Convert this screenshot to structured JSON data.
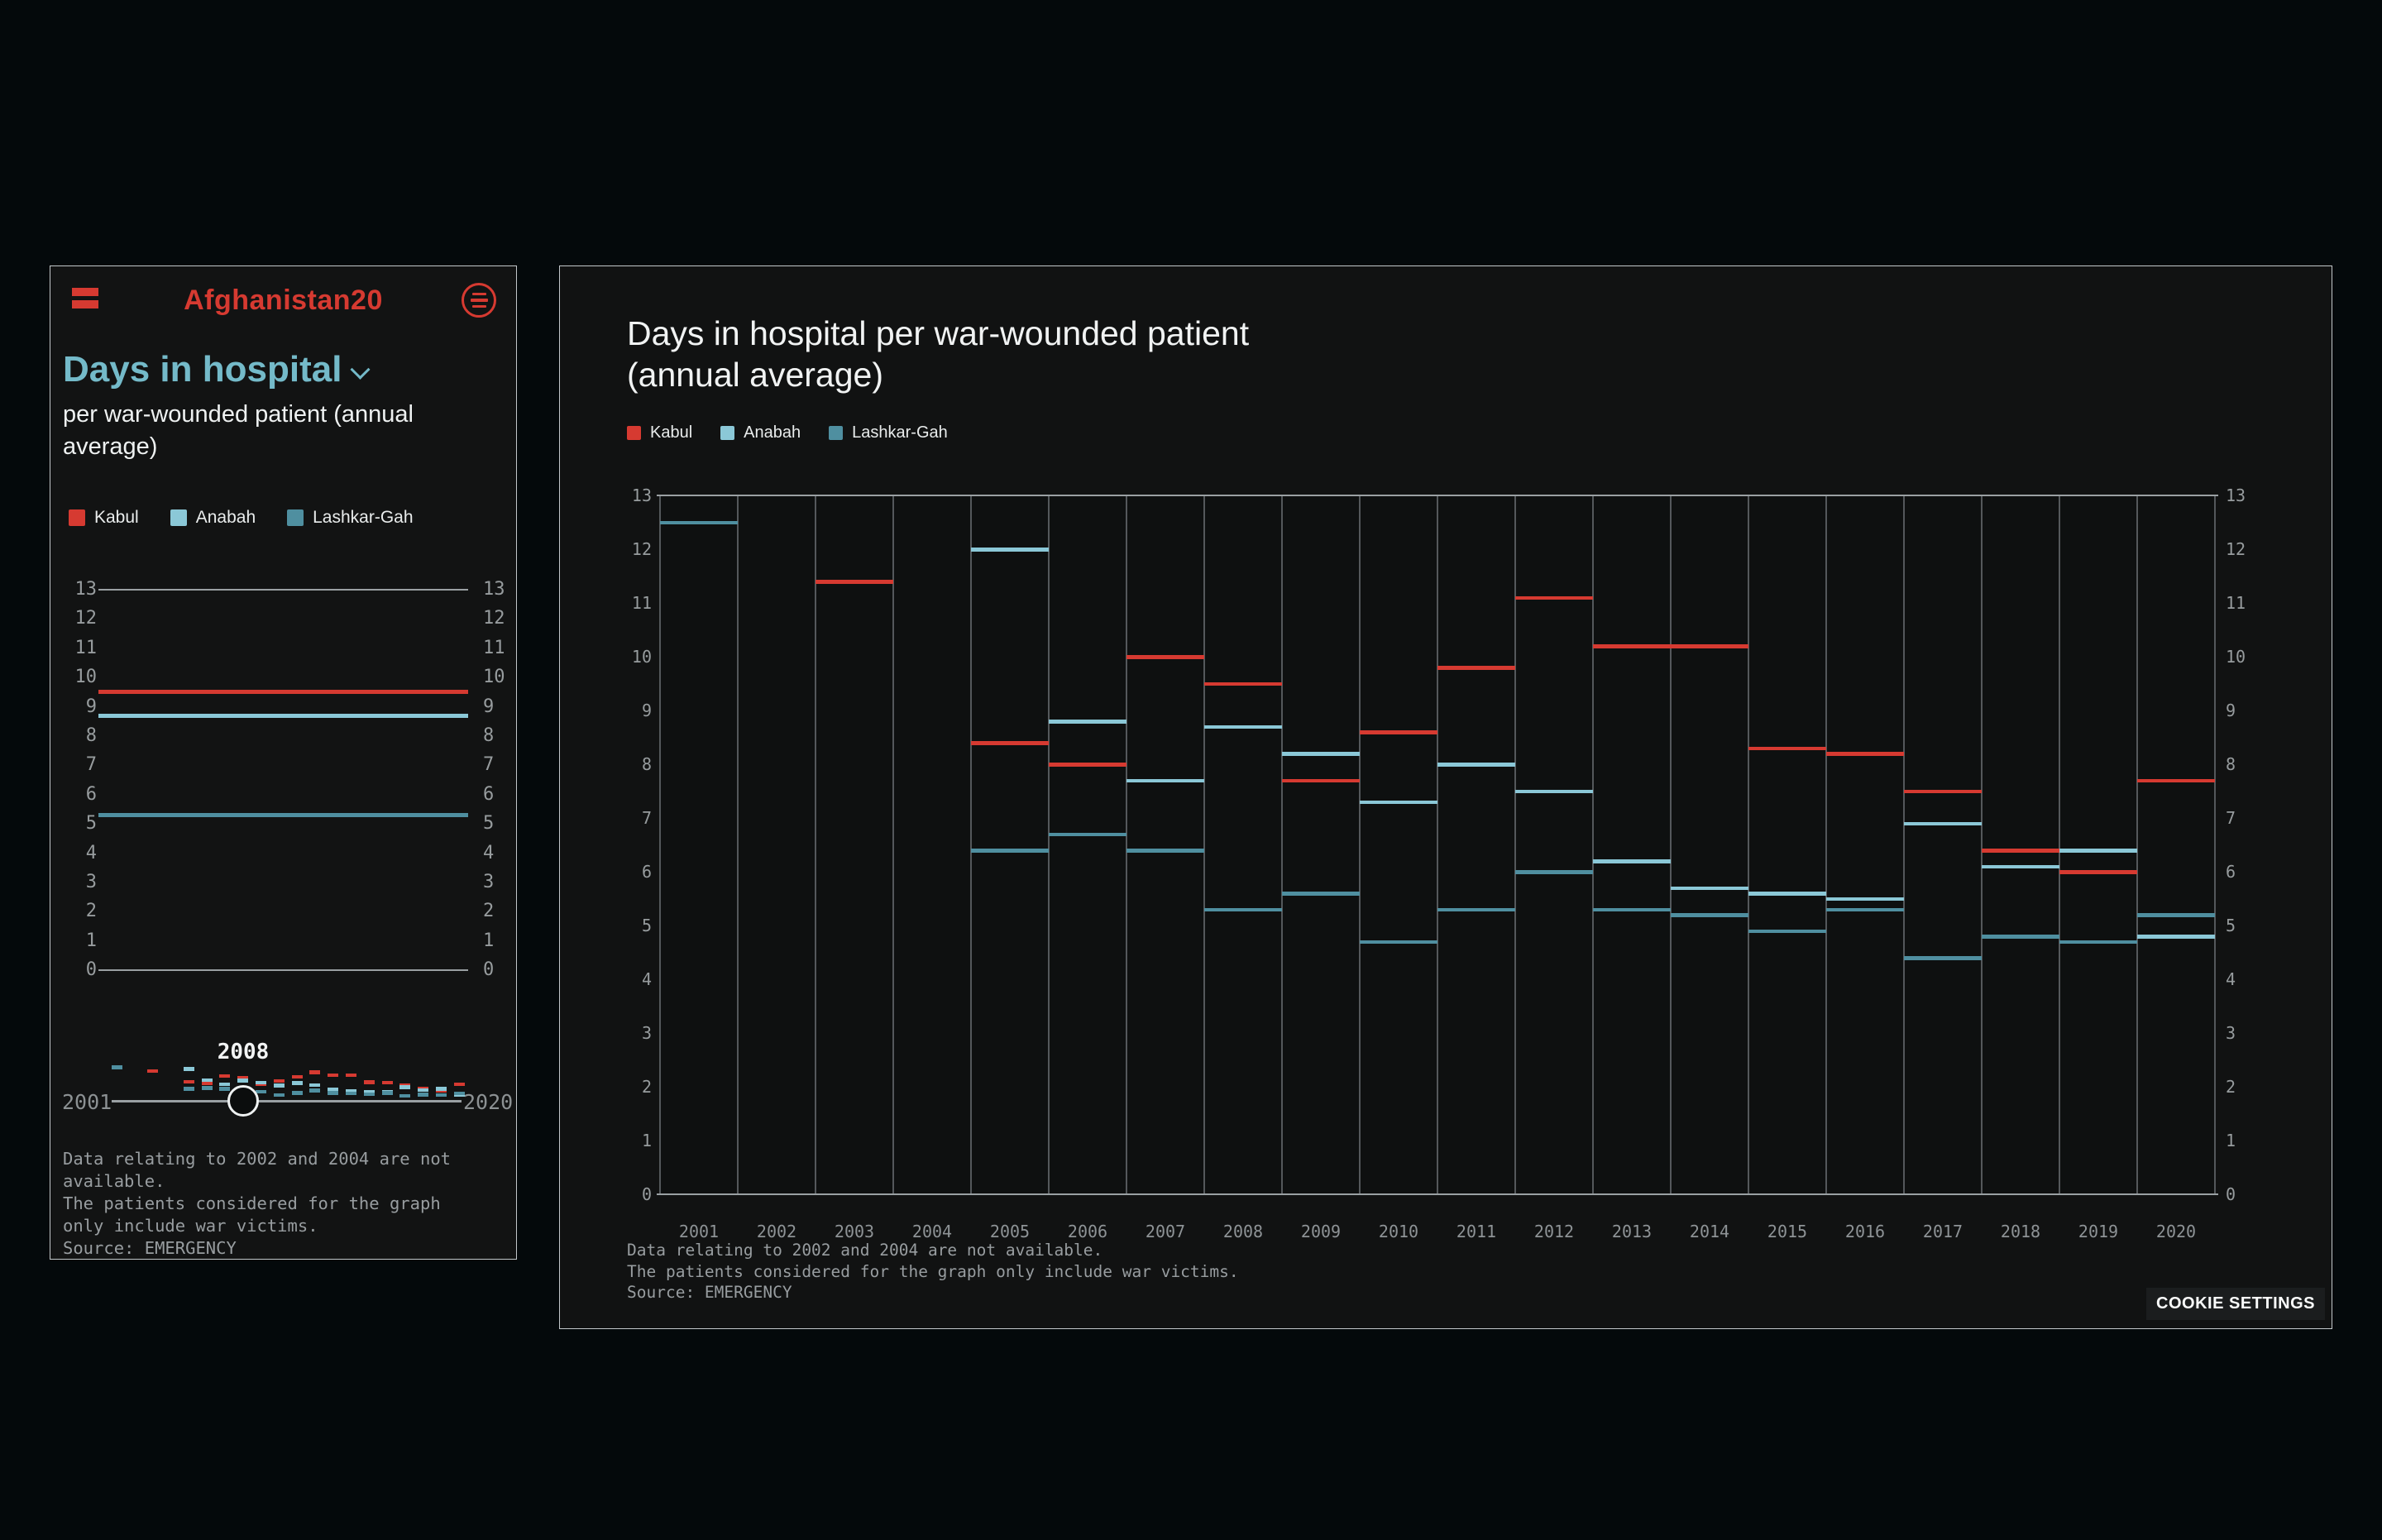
{
  "app": {
    "brand": "Afghanistan20"
  },
  "sidebar": {
    "title": "Days in hospital",
    "subtitle": "per war-wounded patient (annual average)",
    "selected_year": "2008",
    "slider": {
      "start": "2001",
      "end": "2020"
    },
    "notes": [
      "Data relating to 2002 and 2004 are not available.",
      "The patients considered for the graph only include war victims.",
      "Source: EMERGENCY"
    ]
  },
  "main": {
    "title_line1": "Days in hospital per war-wounded patient",
    "title_line2": "(annual average)",
    "notes": [
      "Data relating to 2002 and 2004 are not available.",
      "The patients considered for the graph only include war victims.",
      "Source: EMERGENCY"
    ],
    "cookie_button": "COOKIE SETTINGS"
  },
  "icons": {
    "logo": "brand-flag-icon",
    "menu": "menu-icon",
    "chevron": "chevron-down-icon"
  },
  "colors": {
    "accent_red": "#d63a31",
    "light_blue": "#8bc8d7",
    "teal": "#4f8fa0",
    "title_blue": "#74bac9",
    "axis_gray": "#8e9396"
  },
  "chart_data": {
    "type": "bar",
    "style": "horizontal-step-segments",
    "title": "Days in hospital per war-wounded patient (annual average)",
    "xlabel": "year",
    "ylabel": "days",
    "ylim": [
      0,
      13
    ],
    "ytick_step": 1,
    "grid": "vertical-columns",
    "legend_position": "top-left",
    "years": [
      2001,
      2002,
      2003,
      2004,
      2005,
      2006,
      2007,
      2008,
      2009,
      2010,
      2011,
      2012,
      2013,
      2014,
      2015,
      2016,
      2017,
      2018,
      2019,
      2020
    ],
    "series": [
      {
        "name": "Kabul",
        "color": "#d63a31",
        "values": [
          null,
          null,
          11.4,
          null,
          8.4,
          8.0,
          10.0,
          9.5,
          7.7,
          8.6,
          9.8,
          11.1,
          10.2,
          10.2,
          8.3,
          8.2,
          7.5,
          6.4,
          6.0,
          7.7
        ]
      },
      {
        "name": "Anabah",
        "color": "#8bc8d7",
        "values": [
          null,
          null,
          null,
          null,
          12.0,
          8.8,
          7.7,
          8.7,
          8.2,
          7.3,
          8.0,
          7.5,
          6.2,
          5.7,
          5.6,
          5.5,
          6.9,
          6.1,
          6.4,
          4.8
        ]
      },
      {
        "name": "Lashkar-Gah",
        "color": "#4f8fa0",
        "values": [
          12.5,
          null,
          null,
          null,
          6.4,
          6.7,
          6.4,
          5.3,
          5.6,
          4.7,
          5.3,
          6.0,
          5.3,
          5.2,
          4.9,
          5.3,
          4.4,
          4.8,
          4.7,
          5.2
        ]
      }
    ],
    "sidebar_selected_year": 2008,
    "sidebar_selected_values": {
      "Kabul": 9.5,
      "Anabah": 8.7,
      "Lashkar-Gah": 5.3
    }
  }
}
